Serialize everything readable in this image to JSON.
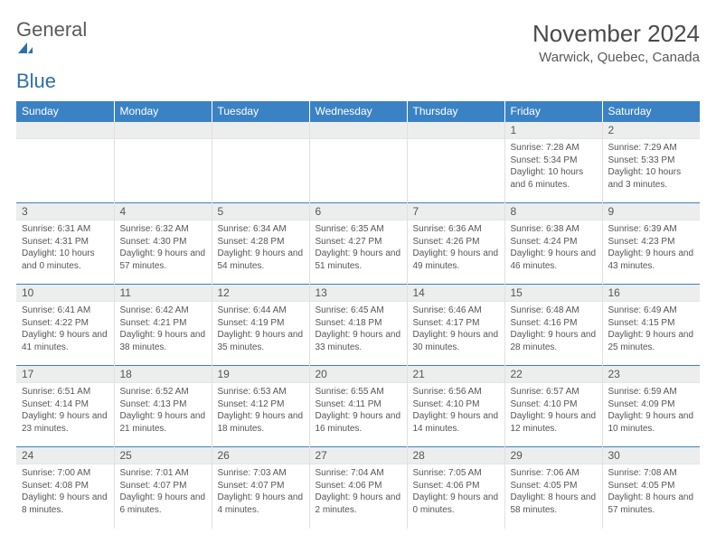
{
  "logo": {
    "text1": "General",
    "text2": "Blue",
    "color_general": "#5a5a5a",
    "color_blue": "#2f6fa8",
    "icon_fill": "#2f6fa8"
  },
  "title": "November 2024",
  "location": "Warwick, Quebec, Canada",
  "header_bg": "#3b82c4",
  "header_fg": "#ffffff",
  "daynum_bg": "#eceded",
  "border_color": "#3b82c4",
  "weekdays": [
    "Sunday",
    "Monday",
    "Tuesday",
    "Wednesday",
    "Thursday",
    "Friday",
    "Saturday"
  ],
  "weeks": [
    [
      {
        "empty": true
      },
      {
        "empty": true
      },
      {
        "empty": true
      },
      {
        "empty": true
      },
      {
        "empty": true
      },
      {
        "num": "1",
        "sunrise": "Sunrise: 7:28 AM",
        "sunset": "Sunset: 5:34 PM",
        "daylight": "Daylight: 10 hours and 6 minutes."
      },
      {
        "num": "2",
        "sunrise": "Sunrise: 7:29 AM",
        "sunset": "Sunset: 5:33 PM",
        "daylight": "Daylight: 10 hours and 3 minutes."
      }
    ],
    [
      {
        "num": "3",
        "sunrise": "Sunrise: 6:31 AM",
        "sunset": "Sunset: 4:31 PM",
        "daylight": "Daylight: 10 hours and 0 minutes."
      },
      {
        "num": "4",
        "sunrise": "Sunrise: 6:32 AM",
        "sunset": "Sunset: 4:30 PM",
        "daylight": "Daylight: 9 hours and 57 minutes."
      },
      {
        "num": "5",
        "sunrise": "Sunrise: 6:34 AM",
        "sunset": "Sunset: 4:28 PM",
        "daylight": "Daylight: 9 hours and 54 minutes."
      },
      {
        "num": "6",
        "sunrise": "Sunrise: 6:35 AM",
        "sunset": "Sunset: 4:27 PM",
        "daylight": "Daylight: 9 hours and 51 minutes."
      },
      {
        "num": "7",
        "sunrise": "Sunrise: 6:36 AM",
        "sunset": "Sunset: 4:26 PM",
        "daylight": "Daylight: 9 hours and 49 minutes."
      },
      {
        "num": "8",
        "sunrise": "Sunrise: 6:38 AM",
        "sunset": "Sunset: 4:24 PM",
        "daylight": "Daylight: 9 hours and 46 minutes."
      },
      {
        "num": "9",
        "sunrise": "Sunrise: 6:39 AM",
        "sunset": "Sunset: 4:23 PM",
        "daylight": "Daylight: 9 hours and 43 minutes."
      }
    ],
    [
      {
        "num": "10",
        "sunrise": "Sunrise: 6:41 AM",
        "sunset": "Sunset: 4:22 PM",
        "daylight": "Daylight: 9 hours and 41 minutes."
      },
      {
        "num": "11",
        "sunrise": "Sunrise: 6:42 AM",
        "sunset": "Sunset: 4:21 PM",
        "daylight": "Daylight: 9 hours and 38 minutes."
      },
      {
        "num": "12",
        "sunrise": "Sunrise: 6:44 AM",
        "sunset": "Sunset: 4:19 PM",
        "daylight": "Daylight: 9 hours and 35 minutes."
      },
      {
        "num": "13",
        "sunrise": "Sunrise: 6:45 AM",
        "sunset": "Sunset: 4:18 PM",
        "daylight": "Daylight: 9 hours and 33 minutes."
      },
      {
        "num": "14",
        "sunrise": "Sunrise: 6:46 AM",
        "sunset": "Sunset: 4:17 PM",
        "daylight": "Daylight: 9 hours and 30 minutes."
      },
      {
        "num": "15",
        "sunrise": "Sunrise: 6:48 AM",
        "sunset": "Sunset: 4:16 PM",
        "daylight": "Daylight: 9 hours and 28 minutes."
      },
      {
        "num": "16",
        "sunrise": "Sunrise: 6:49 AM",
        "sunset": "Sunset: 4:15 PM",
        "daylight": "Daylight: 9 hours and 25 minutes."
      }
    ],
    [
      {
        "num": "17",
        "sunrise": "Sunrise: 6:51 AM",
        "sunset": "Sunset: 4:14 PM",
        "daylight": "Daylight: 9 hours and 23 minutes."
      },
      {
        "num": "18",
        "sunrise": "Sunrise: 6:52 AM",
        "sunset": "Sunset: 4:13 PM",
        "daylight": "Daylight: 9 hours and 21 minutes."
      },
      {
        "num": "19",
        "sunrise": "Sunrise: 6:53 AM",
        "sunset": "Sunset: 4:12 PM",
        "daylight": "Daylight: 9 hours and 18 minutes."
      },
      {
        "num": "20",
        "sunrise": "Sunrise: 6:55 AM",
        "sunset": "Sunset: 4:11 PM",
        "daylight": "Daylight: 9 hours and 16 minutes."
      },
      {
        "num": "21",
        "sunrise": "Sunrise: 6:56 AM",
        "sunset": "Sunset: 4:10 PM",
        "daylight": "Daylight: 9 hours and 14 minutes."
      },
      {
        "num": "22",
        "sunrise": "Sunrise: 6:57 AM",
        "sunset": "Sunset: 4:10 PM",
        "daylight": "Daylight: 9 hours and 12 minutes."
      },
      {
        "num": "23",
        "sunrise": "Sunrise: 6:59 AM",
        "sunset": "Sunset: 4:09 PM",
        "daylight": "Daylight: 9 hours and 10 minutes."
      }
    ],
    [
      {
        "num": "24",
        "sunrise": "Sunrise: 7:00 AM",
        "sunset": "Sunset: 4:08 PM",
        "daylight": "Daylight: 9 hours and 8 minutes."
      },
      {
        "num": "25",
        "sunrise": "Sunrise: 7:01 AM",
        "sunset": "Sunset: 4:07 PM",
        "daylight": "Daylight: 9 hours and 6 minutes."
      },
      {
        "num": "26",
        "sunrise": "Sunrise: 7:03 AM",
        "sunset": "Sunset: 4:07 PM",
        "daylight": "Daylight: 9 hours and 4 minutes."
      },
      {
        "num": "27",
        "sunrise": "Sunrise: 7:04 AM",
        "sunset": "Sunset: 4:06 PM",
        "daylight": "Daylight: 9 hours and 2 minutes."
      },
      {
        "num": "28",
        "sunrise": "Sunrise: 7:05 AM",
        "sunset": "Sunset: 4:06 PM",
        "daylight": "Daylight: 9 hours and 0 minutes."
      },
      {
        "num": "29",
        "sunrise": "Sunrise: 7:06 AM",
        "sunset": "Sunset: 4:05 PM",
        "daylight": "Daylight: 8 hours and 58 minutes."
      },
      {
        "num": "30",
        "sunrise": "Sunrise: 7:08 AM",
        "sunset": "Sunset: 4:05 PM",
        "daylight": "Daylight: 8 hours and 57 minutes."
      }
    ]
  ]
}
